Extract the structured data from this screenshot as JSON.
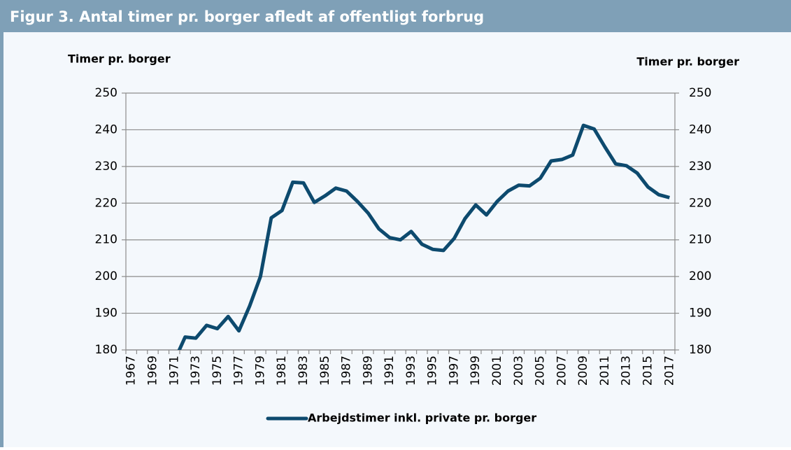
{
  "chart_data": {
    "type": "line",
    "title": "Figur 3. Antal timer pr. borger afledt af offentligt forbrug",
    "ylabel": "Timer pr. borger",
    "y2label": "Timer pr. borger",
    "categories": [
      "1967",
      null,
      "1969",
      null,
      "1971",
      null,
      "1973",
      null,
      "1975",
      null,
      "1977",
      null,
      "1979",
      null,
      "1981",
      null,
      "1983",
      null,
      "1985",
      null,
      "1987",
      null,
      "1989",
      null,
      "1991",
      null,
      "1993",
      null,
      "1995",
      null,
      "1997",
      null,
      "1999",
      null,
      "2001",
      null,
      "2003",
      null,
      "2005",
      null,
      "2007",
      null,
      "2009",
      null,
      "2011",
      null,
      "2013",
      null,
      "2015",
      null,
      "2017"
    ],
    "series": [
      {
        "name": "Arbejdstimer inkl. private pr. borger",
        "color": "#0d4a6e",
        "values": [
          null,
          null,
          null,
          null,
          177,
          183.5,
          183.2,
          186.7,
          185.8,
          189.1,
          185.2,
          192,
          200,
          216,
          218,
          225.7,
          225.5,
          220.2,
          222,
          224.1,
          223.3,
          220.5,
          217.3,
          213,
          210.6,
          210,
          212.3,
          208.8,
          207.4,
          207.1,
          210.4,
          215.8,
          219.5,
          216.8,
          220.5,
          223.3,
          224.9,
          224.7,
          226.8,
          231.5,
          231.9,
          233.1,
          241.2,
          240.2,
          235.3,
          230.7,
          230.2,
          228.2,
          224.4,
          222.3,
          221.5
        ]
      }
    ],
    "ylim": [
      180,
      250
    ],
    "yticks": [
      180,
      190,
      200,
      210,
      220,
      230,
      240,
      250
    ],
    "y2lim": [
      180,
      250
    ],
    "y2ticks": [
      180,
      190,
      200,
      210,
      220,
      230,
      240,
      250
    ],
    "grid": true
  }
}
